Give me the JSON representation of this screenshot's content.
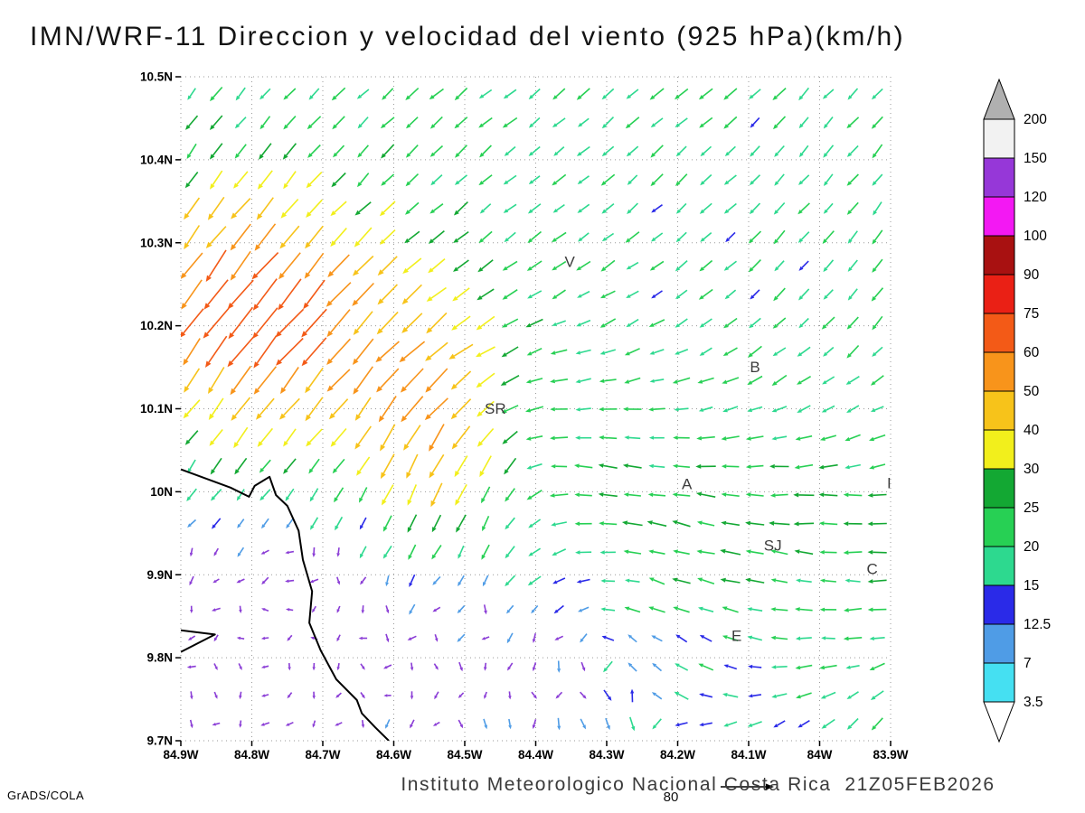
{
  "title": "IMN/WRF-11 Direccion y velocidad del viento (925 hPa)(km/h)",
  "footer": {
    "caption": "Instituto Meteorologico Nacional Costa Rica  21Z05FEB2026",
    "ref_vector_label": "80",
    "credit": "GrADS/COLA"
  },
  "chart_data": {
    "type": "vector-field-map",
    "model": "IMN/WRF-11",
    "variable": "Direccion y velocidad del viento",
    "level": "925 hPa",
    "units": "km/h",
    "valid_time": "21Z05FEB2026",
    "x_axis": {
      "ticks": [
        "84.9W",
        "84.8W",
        "84.7W",
        "84.6W",
        "84.5W",
        "84.4W",
        "84.3W",
        "84.2W",
        "84.1W",
        "84W",
        "83.9W"
      ],
      "range": [
        84.9,
        83.9
      ]
    },
    "y_axis": {
      "ticks": [
        "10.5N",
        "10.4N",
        "10.3N",
        "10.2N",
        "10.1N",
        "10N",
        "9.9N",
        "9.8N",
        "9.7N"
      ],
      "range": [
        9.7,
        10.5
      ]
    },
    "colorbar": {
      "levels": [
        3.5,
        7,
        12.5,
        15,
        20,
        25,
        30,
        40,
        50,
        60,
        75,
        90,
        100,
        120,
        150,
        200
      ],
      "level_labels": [
        "200",
        "150",
        "120",
        "100",
        "90",
        "75",
        "60",
        "50",
        "40",
        "30",
        "25",
        "20",
        "15",
        "12.5",
        "7",
        "3.5"
      ],
      "colors": {
        "below": "#ffffff",
        "bins": [
          "#45e0f2",
          "#4f9ce6",
          "#2a2ae8",
          "#2dd98f",
          "#27d054",
          "#13a833",
          "#f2ef1c",
          "#f7c31a",
          "#f8941b",
          "#f35a17",
          "#ea2015",
          "#a81111",
          "#f318f3",
          "#9637d8",
          "#f2f2f2"
        ],
        "above": "#b0b0b0"
      }
    },
    "stations": [
      {
        "label": "V",
        "lon": 84.352,
        "lat": 10.271
      },
      {
        "label": "B",
        "lon": 84.091,
        "lat": 10.144
      },
      {
        "label": "SR",
        "lon": 84.457,
        "lat": 10.094
      },
      {
        "label": "A",
        "lon": 84.187,
        "lat": 10.003
      },
      {
        "label": "I",
        "lon": 83.902,
        "lat": 10.004
      },
      {
        "label": "SJ",
        "lon": 84.066,
        "lat": 9.929
      },
      {
        "label": "C",
        "lon": 83.926,
        "lat": 9.901
      },
      {
        "label": "E",
        "lon": 84.117,
        "lat": 9.82
      }
    ],
    "coastline": [
      [
        [
          84.9,
          10.027
        ],
        [
          84.83,
          10.005
        ],
        [
          84.804,
          9.994
        ],
        [
          84.796,
          10.007
        ],
        [
          84.775,
          10.018
        ],
        [
          84.766,
          9.996
        ],
        [
          84.75,
          9.983
        ],
        [
          84.734,
          9.953
        ],
        [
          84.728,
          9.918
        ],
        [
          84.715,
          9.88
        ],
        [
          84.719,
          9.842
        ],
        [
          84.703,
          9.809
        ],
        [
          84.681,
          9.774
        ],
        [
          84.652,
          9.749
        ],
        [
          84.645,
          9.733
        ],
        [
          84.626,
          9.716
        ],
        [
          84.607,
          9.7
        ]
      ],
      [
        [
          84.9,
          9.833
        ],
        [
          84.852,
          9.828
        ],
        [
          84.9,
          9.807
        ]
      ]
    ],
    "grid": {
      "lon_start": 84.885,
      "lon_end": 83.915,
      "lat_start": 9.72,
      "lat_end": 10.48,
      "step": 0.0345
    },
    "flow_model": {
      "base": {
        "u0": 0.45,
        "u1": 0.35,
        "v0": 0.72,
        "v1": -0.12
      },
      "meander": {
        "amp": 0.18,
        "kx": 5.0,
        "ky": 4.0
      },
      "vortices": [
        {
          "x": 0.47,
          "y": 0.45,
          "r": 0.16,
          "strength": 1.1
        },
        {
          "x": 0.58,
          "y": 0.16,
          "r": 0.18,
          "strength": 1.6
        }
      ],
      "se_band": {
        "y": 0.3,
        "sy": 0.13,
        "x_on": 0.45,
        "u": -1.2,
        "v": 0.5
      },
      "speed_base": 19,
      "speed_bumps": [
        {
          "x": 0.1,
          "y": 0.64,
          "sx": 0.12,
          "sy": 0.13,
          "amp": 52
        },
        {
          "x": 0.34,
          "y": 0.5,
          "sx": 0.075,
          "sy": 0.13,
          "amp": 34
        },
        {
          "x": 0.76,
          "y": 0.32,
          "sx": 0.18,
          "sy": 0.1,
          "amp": 9
        },
        {
          "x": 0.1,
          "y": 0.14,
          "sx": 0.2,
          "sy": 0.18,
          "amp": -18
        },
        {
          "x": 0.45,
          "y": 0.1,
          "sx": 0.18,
          "sy": 0.12,
          "amp": -10
        }
      ],
      "jitter": 4.5,
      "calm_speed": 8,
      "calm_color": "#8a3cd6",
      "arrow": {
        "len_base": 7,
        "len_per_speed": 0.55,
        "len_max": 44,
        "width": 1.6
      }
    }
  }
}
